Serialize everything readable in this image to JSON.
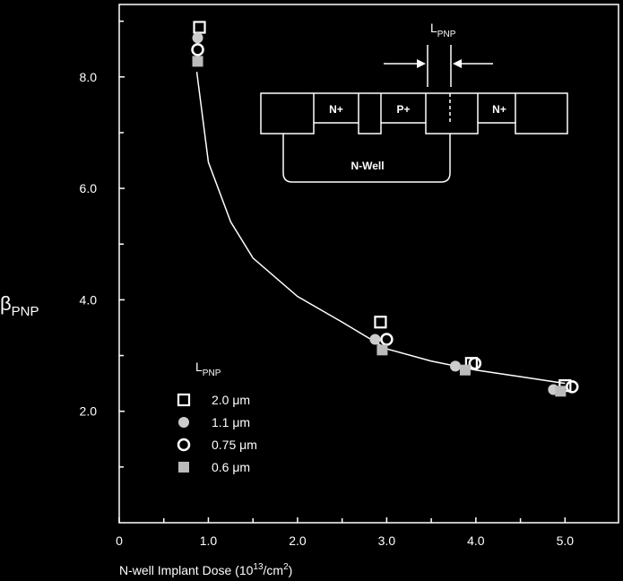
{
  "chart_data": {
    "type": "scatter",
    "x_label": [
      "N-well Implant Dose (10",
      "13",
      "/cm",
      "2",
      ")"
    ],
    "y_label": [
      "β",
      "PNP"
    ],
    "xlim": [
      0,
      5.6
    ],
    "ylim": [
      0,
      9.3
    ],
    "xticks": [
      0,
      {
        "value": 1,
        "label": "1.0"
      },
      {
        "value": 2,
        "label": "2.0"
      },
      {
        "value": 3,
        "label": "3.0"
      },
      {
        "value": 4,
        "label": "4.0"
      },
      {
        "value": 5,
        "label": "5.0"
      }
    ],
    "xminor_ticks": [
      0.5,
      1.5,
      2.5,
      3.5,
      4.5
    ],
    "yticks": [
      {
        "value": 2,
        "label": "2.0"
      },
      {
        "value": 4,
        "label": "4.0"
      },
      {
        "value": 6,
        "label": "6.0"
      },
      {
        "value": 8,
        "label": "8.0"
      }
    ],
    "yminor_ticks": [
      1,
      3,
      5,
      7,
      9
    ],
    "legend_title": [
      "L",
      "PNP"
    ],
    "legend_position": "lower-left",
    "series": [
      {
        "name": "2.0 μm",
        "marker": "square-open",
        "color": "#ffffff",
        "x": [
          0.9,
          2.93,
          3.95,
          5.0
        ],
        "values": [
          8.89,
          3.6,
          2.86,
          2.46
        ]
      },
      {
        "name": "1.1 μm",
        "marker": "circle-filled",
        "color": "#cccccc",
        "x": [
          0.88,
          2.87,
          3.77,
          4.87
        ],
        "values": [
          8.7,
          3.29,
          2.81,
          2.39
        ]
      },
      {
        "name": "0.75 μm",
        "marker": "circle-open",
        "color": "#ffffff",
        "x": [
          0.88,
          3.0,
          3.99,
          5.08
        ],
        "values": [
          8.49,
          3.29,
          2.86,
          2.44
        ]
      },
      {
        "name": "0.6 μm",
        "marker": "square-filled",
        "color": "#bbbbbb",
        "x": [
          0.88,
          2.95,
          3.88,
          4.95
        ],
        "values": [
          8.28,
          3.1,
          2.74,
          2.36
        ]
      }
    ],
    "fit": {
      "color": "#ffffff",
      "x": [
        0.87,
        1.0,
        1.25,
        1.5,
        2.0,
        2.5,
        3.0,
        3.5,
        4.0,
        4.5,
        5.0
      ],
      "values": [
        8.09,
        6.47,
        5.4,
        4.75,
        4.06,
        3.6,
        3.12,
        2.9,
        2.74,
        2.62,
        2.5
      ]
    },
    "diagram": {
      "regions": [
        "N+",
        "P+",
        "N+"
      ],
      "well": "N-Well",
      "dimension_label": [
        "L",
        "PNP"
      ]
    }
  }
}
